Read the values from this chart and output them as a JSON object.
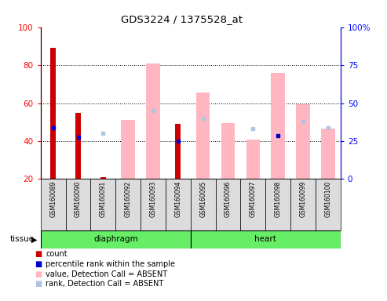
{
  "title": "GDS3224 / 1375528_at",
  "samples": [
    "GSM160089",
    "GSM160090",
    "GSM160091",
    "GSM160092",
    "GSM160093",
    "GSM160094",
    "GSM160095",
    "GSM160096",
    "GSM160097",
    "GSM160098",
    "GSM160099",
    "GSM160100"
  ],
  "count_values": [
    89,
    55,
    21,
    0,
    0,
    49,
    0,
    0,
    0,
    0,
    0,
    0
  ],
  "percentile_values": [
    47,
    42,
    0,
    0,
    0,
    40,
    0,
    0,
    0,
    43,
    0,
    0
  ],
  "absent_value_bars": [
    0,
    0,
    0,
    39,
    76,
    0,
    57,
    37,
    26,
    70,
    49,
    33
  ],
  "absent_rank_dots": [
    0,
    0,
    30,
    0,
    45,
    0,
    40,
    0,
    33,
    0,
    38,
    34
  ],
  "ylim_left": [
    20,
    100
  ],
  "ylim_right": [
    0,
    100
  ],
  "yticks_left": [
    20,
    40,
    60,
    80,
    100
  ],
  "yticks_right": [
    0,
    25,
    50,
    75,
    100
  ],
  "yticklabels_right": [
    "0",
    "25",
    "50",
    "75",
    "100%"
  ],
  "count_color": "#CC0000",
  "percentile_color": "#0000CC",
  "absent_value_color": "#FFB6C1",
  "absent_rank_color": "#B0C4DE",
  "diaphragm_label": "diaphragm",
  "heart_label": "heart",
  "tissue_label": "tissue",
  "group_color": "#66EE66",
  "bg_color": "#DCDCDC",
  "legend_items": [
    {
      "color": "#CC0000",
      "label": "count"
    },
    {
      "color": "#0000CC",
      "label": "percentile rank within the sample"
    },
    {
      "color": "#FFB6C1",
      "label": "value, Detection Call = ABSENT"
    },
    {
      "color": "#B0C4DE",
      "label": "rank, Detection Call = ABSENT"
    }
  ]
}
